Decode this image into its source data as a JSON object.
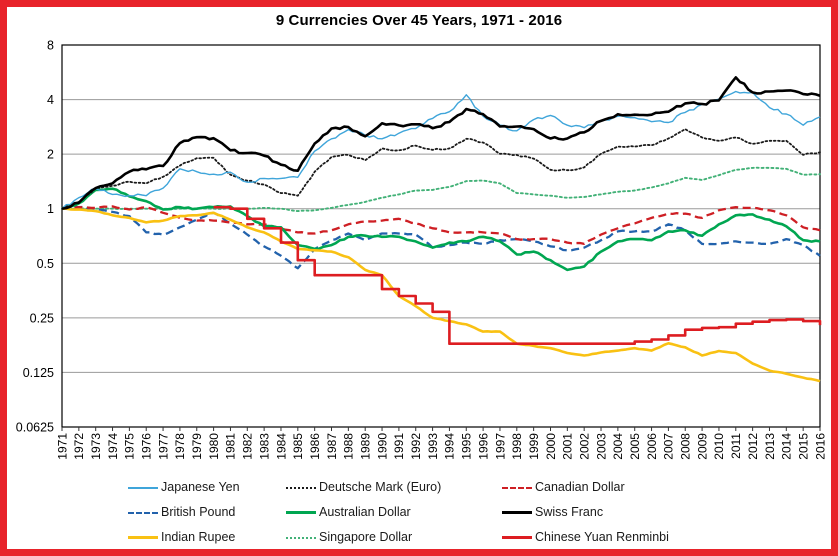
{
  "page": {
    "border_color": "#e8232a",
    "background_color": "#ffffff"
  },
  "chart_data": {
    "type": "line",
    "title": "9 Currencies Over 45 Years, 1971 - 2016",
    "xlabel": "",
    "ylabel": "",
    "grid": "horizontal",
    "legend_position": "bottom",
    "x_axis": {
      "ticks": [
        1971,
        1972,
        1973,
        1974,
        1975,
        1976,
        1977,
        1978,
        1979,
        1980,
        1981,
        1982,
        1983,
        1984,
        1985,
        1986,
        1987,
        1988,
        1989,
        1990,
        1991,
        1992,
        1993,
        1994,
        1995,
        1996,
        1997,
        1998,
        1999,
        2000,
        2001,
        2002,
        2003,
        2004,
        2005,
        2006,
        2007,
        2008,
        2009,
        2010,
        2011,
        2012,
        2013,
        2014,
        2015,
        2016
      ]
    },
    "y_axis": {
      "scale": "log2",
      "range": [
        0.0625,
        8
      ],
      "ticks": [
        8,
        4,
        2,
        1,
        0.5,
        0.25,
        0.125,
        0.0625
      ],
      "tick_labels": [
        "8",
        "4",
        "2",
        "1",
        "0.5",
        "0.25",
        "0.125",
        "0.0625"
      ]
    },
    "x": [
      1971,
      1972,
      1973,
      1974,
      1975,
      1976,
      1977,
      1978,
      1979,
      1980,
      1981,
      1982,
      1983,
      1984,
      1985,
      1986,
      1987,
      1988,
      1989,
      1990,
      1991,
      1992,
      1993,
      1994,
      1995,
      1996,
      1997,
      1998,
      1999,
      2000,
      2001,
      2002,
      2003,
      2004,
      2005,
      2006,
      2007,
      2008,
      2009,
      2010,
      2011,
      2012,
      2013,
      2014,
      2015,
      2016
    ],
    "series": [
      {
        "name": "Japanese Yen",
        "color": "#3fa5da",
        "dash": "solid",
        "width": 1.4,
        "values": [
          1.0,
          1.15,
          1.29,
          1.2,
          1.18,
          1.18,
          1.3,
          1.66,
          1.6,
          1.55,
          1.59,
          1.4,
          1.47,
          1.47,
          1.49,
          2.08,
          2.43,
          2.73,
          2.54,
          2.43,
          2.61,
          2.77,
          3.15,
          3.43,
          4.25,
          3.24,
          2.89,
          2.69,
          3.1,
          3.27,
          2.89,
          2.8,
          3.04,
          3.24,
          3.18,
          3.02,
          2.99,
          3.4,
          3.76,
          4.02,
          4.43,
          4.38,
          3.61,
          3.33,
          2.89,
          3.21
        ]
      },
      {
        "name": "Deutsche Mark (Euro)",
        "color": "#1a1a1a",
        "dash": "dotted",
        "width": 1.8,
        "values": [
          1.0,
          1.09,
          1.3,
          1.34,
          1.41,
          1.38,
          1.5,
          1.73,
          1.9,
          1.91,
          1.54,
          1.43,
          1.36,
          1.22,
          1.18,
          1.6,
          1.93,
          1.98,
          1.85,
          2.15,
          2.1,
          2.23,
          2.11,
          2.15,
          2.43,
          2.32,
          2.01,
          1.98,
          1.89,
          1.64,
          1.63,
          1.69,
          2.01,
          2.2,
          2.2,
          2.24,
          2.44,
          2.75,
          2.47,
          2.37,
          2.47,
          2.28,
          2.37,
          2.37,
          1.98,
          2.05
        ]
      },
      {
        "name": "Canadian Dollar",
        "color": "#ce1f24",
        "dash": "dashed",
        "width": 2.3,
        "values": [
          1.0,
          1.02,
          1.01,
          1.03,
          0.99,
          1.02,
          0.95,
          0.89,
          0.86,
          0.86,
          0.84,
          0.82,
          0.82,
          0.78,
          0.74,
          0.73,
          0.76,
          0.82,
          0.85,
          0.86,
          0.88,
          0.83,
          0.78,
          0.74,
          0.74,
          0.74,
          0.73,
          0.68,
          0.68,
          0.68,
          0.65,
          0.64,
          0.72,
          0.78,
          0.83,
          0.89,
          0.94,
          0.94,
          0.89,
          0.98,
          1.02,
          1.01,
          0.98,
          0.92,
          0.79,
          0.76
        ]
      },
      {
        "name": "British Pound",
        "color": "#2262ac",
        "dash": "dashed",
        "width": 2.3,
        "values": [
          1.0,
          1.02,
          1.0,
          0.96,
          0.91,
          0.74,
          0.72,
          0.79,
          0.87,
          0.95,
          0.83,
          0.72,
          0.62,
          0.55,
          0.47,
          0.6,
          0.67,
          0.73,
          0.67,
          0.73,
          0.73,
          0.72,
          0.61,
          0.63,
          0.65,
          0.64,
          0.67,
          0.68,
          0.66,
          0.62,
          0.59,
          0.61,
          0.67,
          0.75,
          0.75,
          0.75,
          0.82,
          0.76,
          0.64,
          0.64,
          0.66,
          0.65,
          0.64,
          0.68,
          0.63,
          0.55
        ]
      },
      {
        "name": "Australian Dollar",
        "color": "#00a651",
        "dash": "solid",
        "width": 2.6,
        "values": [
          1.0,
          1.07,
          1.27,
          1.29,
          1.17,
          1.1,
          0.99,
          1.02,
          1.0,
          1.02,
          1.03,
          0.91,
          0.8,
          0.79,
          0.63,
          0.6,
          0.63,
          0.7,
          0.71,
          0.7,
          0.7,
          0.66,
          0.61,
          0.65,
          0.66,
          0.7,
          0.66,
          0.56,
          0.58,
          0.52,
          0.46,
          0.48,
          0.58,
          0.66,
          0.68,
          0.67,
          0.75,
          0.76,
          0.71,
          0.82,
          0.92,
          0.93,
          0.87,
          0.8,
          0.67,
          0.66
        ]
      },
      {
        "name": "Swiss Franc",
        "color": "#000000",
        "dash": "solid",
        "width": 2.6,
        "values": [
          1.0,
          1.08,
          1.3,
          1.38,
          1.6,
          1.65,
          1.72,
          2.3,
          2.48,
          2.45,
          2.1,
          2.03,
          1.96,
          1.75,
          1.62,
          2.29,
          2.77,
          2.82,
          2.51,
          2.96,
          2.88,
          2.92,
          2.78,
          3.01,
          3.55,
          3.32,
          2.84,
          2.84,
          2.75,
          2.44,
          2.44,
          2.64,
          3.05,
          3.32,
          3.3,
          3.3,
          3.43,
          3.81,
          3.78,
          3.96,
          5.3,
          4.38,
          4.43,
          4.48,
          4.29,
          4.2
        ]
      },
      {
        "name": "Indian Rupee",
        "color": "#f9c113",
        "dash": "solid",
        "width": 2.6,
        "values": [
          1.0,
          0.99,
          0.97,
          0.92,
          0.89,
          0.84,
          0.86,
          0.91,
          0.92,
          0.95,
          0.87,
          0.79,
          0.74,
          0.66,
          0.6,
          0.59,
          0.58,
          0.54,
          0.46,
          0.43,
          0.33,
          0.29,
          0.25,
          0.24,
          0.23,
          0.21,
          0.21,
          0.18,
          0.175,
          0.17,
          0.16,
          0.155,
          0.161,
          0.165,
          0.17,
          0.165,
          0.181,
          0.172,
          0.155,
          0.164,
          0.16,
          0.14,
          0.128,
          0.123,
          0.117,
          0.112
        ]
      },
      {
        "name": "Singapore Dollar",
        "color": "#42b177",
        "dash": "dotted",
        "width": 1.9,
        "values": [
          1.0,
          1.0,
          1.0,
          1.0,
          1.0,
          1.0,
          1.0,
          1.0,
          1.0,
          1.0,
          1.0,
          1.0,
          1.01,
          1.0,
          0.97,
          0.98,
          1.01,
          1.05,
          1.09,
          1.15,
          1.2,
          1.26,
          1.27,
          1.32,
          1.42,
          1.43,
          1.38,
          1.22,
          1.2,
          1.18,
          1.15,
          1.16,
          1.2,
          1.24,
          1.26,
          1.31,
          1.38,
          1.48,
          1.44,
          1.53,
          1.64,
          1.68,
          1.68,
          1.66,
          1.54,
          1.55
        ]
      },
      {
        "name": "Chinese Yuan Renminbi",
        "color": "#dd1d21",
        "dash": "solid",
        "width": 2.6,
        "step": true,
        "values": [
          null,
          null,
          null,
          null,
          null,
          null,
          null,
          null,
          null,
          1.02,
          1.0,
          0.88,
          0.78,
          0.65,
          0.52,
          0.43,
          0.43,
          0.43,
          0.43,
          0.36,
          0.33,
          0.3,
          0.27,
          0.18,
          0.18,
          0.18,
          0.18,
          0.18,
          0.18,
          0.18,
          0.18,
          0.18,
          0.18,
          0.18,
          0.185,
          0.19,
          0.2,
          0.215,
          0.22,
          0.222,
          0.232,
          0.238,
          0.243,
          0.245,
          0.24,
          0.228
        ]
      }
    ]
  }
}
